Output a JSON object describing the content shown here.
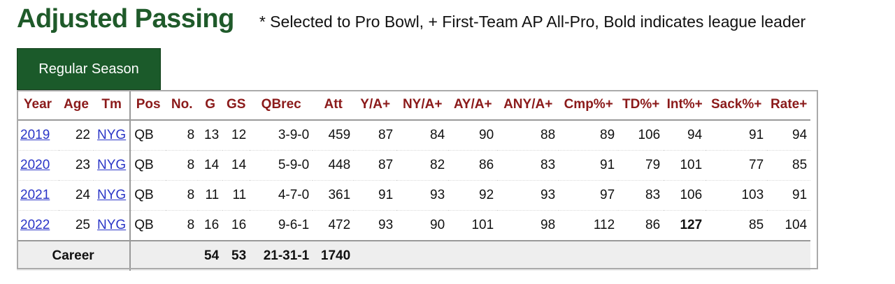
{
  "header": {
    "title": "Adjusted Passing",
    "note": "* Selected to Pro Bowl, + First-Team AP All-Pro, Bold indicates league leader"
  },
  "tab": {
    "label": "Regular Season"
  },
  "table": {
    "columns": [
      "Year",
      "Age",
      "Tm",
      "Pos",
      "No.",
      "G",
      "GS",
      "QBrec",
      "Att",
      "Y/A+",
      "NY/A+",
      "AY/A+",
      "ANY/A+",
      "Cmp%+",
      "TD%+",
      "Int%+",
      "Sack%+",
      "Rate+"
    ],
    "rows": [
      {
        "year": "2019",
        "age": "22",
        "tm": "NYG",
        "pos": "QB",
        "no": "8",
        "g": "13",
        "gs": "12",
        "qbrec": "3-9-0",
        "att": "459",
        "ya": "87",
        "nya": "84",
        "aya": "90",
        "anya": "88",
        "cmp": "89",
        "td": "106",
        "int": "94",
        "sack": "91",
        "rate": "94"
      },
      {
        "year": "2020",
        "age": "23",
        "tm": "NYG",
        "pos": "QB",
        "no": "8",
        "g": "14",
        "gs": "14",
        "qbrec": "5-9-0",
        "att": "448",
        "ya": "87",
        "nya": "82",
        "aya": "86",
        "anya": "83",
        "cmp": "91",
        "td": "79",
        "int": "101",
        "sack": "77",
        "rate": "85"
      },
      {
        "year": "2021",
        "age": "24",
        "tm": "NYG",
        "pos": "QB",
        "no": "8",
        "g": "11",
        "gs": "11",
        "qbrec": "4-7-0",
        "att": "361",
        "ya": "91",
        "nya": "93",
        "aya": "92",
        "anya": "93",
        "cmp": "97",
        "td": "83",
        "int": "106",
        "sack": "103",
        "rate": "91"
      },
      {
        "year": "2022",
        "age": "25",
        "tm": "NYG",
        "pos": "QB",
        "no": "8",
        "g": "16",
        "gs": "16",
        "qbrec": "9-6-1",
        "att": "472",
        "ya": "93",
        "nya": "90",
        "aya": "101",
        "anya": "98",
        "cmp": "112",
        "td": "86",
        "int": "127",
        "sack": "85",
        "rate": "104"
      }
    ],
    "career": {
      "label": "Career",
      "g": "54",
      "gs": "53",
      "qbrec": "21-31-1",
      "att": "1740"
    }
  },
  "colors": {
    "title": "#1f5a2a",
    "tab_bg": "#1b5a2a",
    "header_text": "#8b1a1a",
    "link": "#2a35c7"
  }
}
